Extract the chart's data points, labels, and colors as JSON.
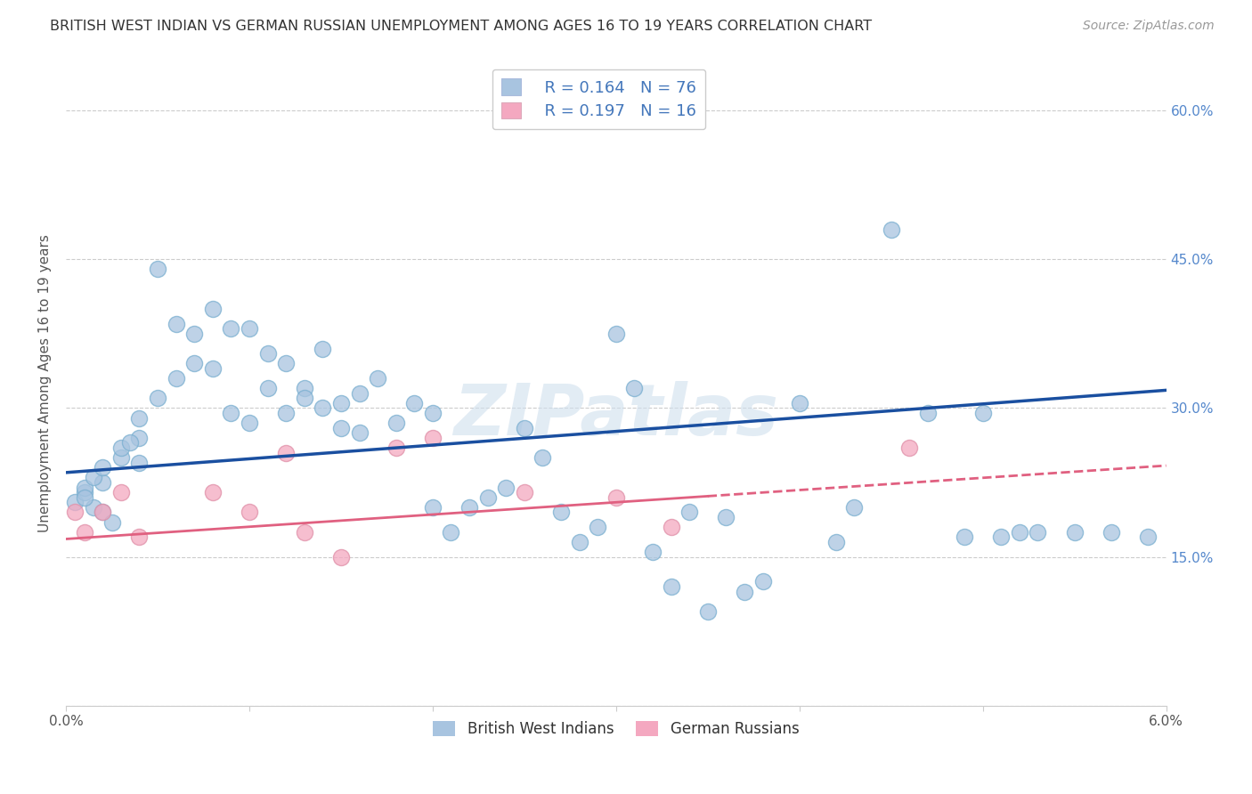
{
  "title": "BRITISH WEST INDIAN VS GERMAN RUSSIAN UNEMPLOYMENT AMONG AGES 16 TO 19 YEARS CORRELATION CHART",
  "source": "Source: ZipAtlas.com",
  "ylabel": "Unemployment Among Ages 16 to 19 years",
  "x_min": 0.0,
  "x_max": 0.06,
  "y_min": 0.0,
  "y_max": 0.65,
  "x_ticks": [
    0.0,
    0.01,
    0.02,
    0.03,
    0.04,
    0.05,
    0.06
  ],
  "x_tick_labels": [
    "0.0%",
    "",
    "",
    "",
    "",
    "",
    "6.0%"
  ],
  "y_ticks": [
    0.0,
    0.15,
    0.3,
    0.45,
    0.6
  ],
  "y_tick_labels": [
    "",
    "15.0%",
    "30.0%",
    "45.0%",
    "60.0%"
  ],
  "bwi_R": "0.164",
  "bwi_N": "76",
  "gr_R": "0.197",
  "gr_N": "16",
  "bwi_color": "#a8c4e0",
  "gr_color": "#f4a8c0",
  "bwi_line_color": "#1a4fa0",
  "gr_line_color": "#e06080",
  "watermark": "ZIPatlas",
  "bwi_x": [
    0.0005,
    0.001,
    0.0015,
    0.002,
    0.0025,
    0.001,
    0.002,
    0.0015,
    0.001,
    0.002,
    0.003,
    0.003,
    0.004,
    0.004,
    0.0035,
    0.004,
    0.005,
    0.005,
    0.006,
    0.006,
    0.007,
    0.007,
    0.008,
    0.008,
    0.009,
    0.009,
    0.01,
    0.01,
    0.011,
    0.011,
    0.012,
    0.012,
    0.013,
    0.013,
    0.014,
    0.014,
    0.015,
    0.015,
    0.016,
    0.016,
    0.017,
    0.018,
    0.019,
    0.02,
    0.02,
    0.021,
    0.022,
    0.023,
    0.024,
    0.025,
    0.026,
    0.027,
    0.028,
    0.029,
    0.03,
    0.031,
    0.032,
    0.033,
    0.034,
    0.035,
    0.036,
    0.037,
    0.038,
    0.04,
    0.042,
    0.043,
    0.045,
    0.047,
    0.049,
    0.051,
    0.053,
    0.055,
    0.057,
    0.059,
    0.05,
    0.052
  ],
  "bwi_y": [
    0.205,
    0.215,
    0.2,
    0.195,
    0.185,
    0.22,
    0.225,
    0.23,
    0.21,
    0.24,
    0.25,
    0.26,
    0.245,
    0.27,
    0.265,
    0.29,
    0.44,
    0.31,
    0.33,
    0.385,
    0.345,
    0.375,
    0.4,
    0.34,
    0.38,
    0.295,
    0.38,
    0.285,
    0.355,
    0.32,
    0.295,
    0.345,
    0.32,
    0.31,
    0.36,
    0.3,
    0.305,
    0.28,
    0.275,
    0.315,
    0.33,
    0.285,
    0.305,
    0.295,
    0.2,
    0.175,
    0.2,
    0.21,
    0.22,
    0.28,
    0.25,
    0.195,
    0.165,
    0.18,
    0.375,
    0.32,
    0.155,
    0.12,
    0.195,
    0.095,
    0.19,
    0.115,
    0.125,
    0.305,
    0.165,
    0.2,
    0.48,
    0.295,
    0.17,
    0.17,
    0.175,
    0.175,
    0.175,
    0.17,
    0.295,
    0.175
  ],
  "gr_x": [
    0.0005,
    0.001,
    0.002,
    0.003,
    0.004,
    0.008,
    0.01,
    0.012,
    0.013,
    0.015,
    0.018,
    0.02,
    0.025,
    0.03,
    0.033,
    0.046
  ],
  "gr_y": [
    0.195,
    0.175,
    0.195,
    0.215,
    0.17,
    0.215,
    0.195,
    0.255,
    0.175,
    0.15,
    0.26,
    0.27,
    0.215,
    0.21,
    0.18,
    0.26
  ],
  "bwi_trend_x": [
    0.0,
    0.06
  ],
  "bwi_trend_y": [
    0.235,
    0.318
  ],
  "gr_trend_x": [
    0.0,
    0.06
  ],
  "gr_trend_y": [
    0.168,
    0.242
  ],
  "background_color": "#ffffff",
  "grid_color": "#cccccc",
  "title_color": "#333333",
  "source_color": "#999999",
  "right_y_color": "#5588cc"
}
